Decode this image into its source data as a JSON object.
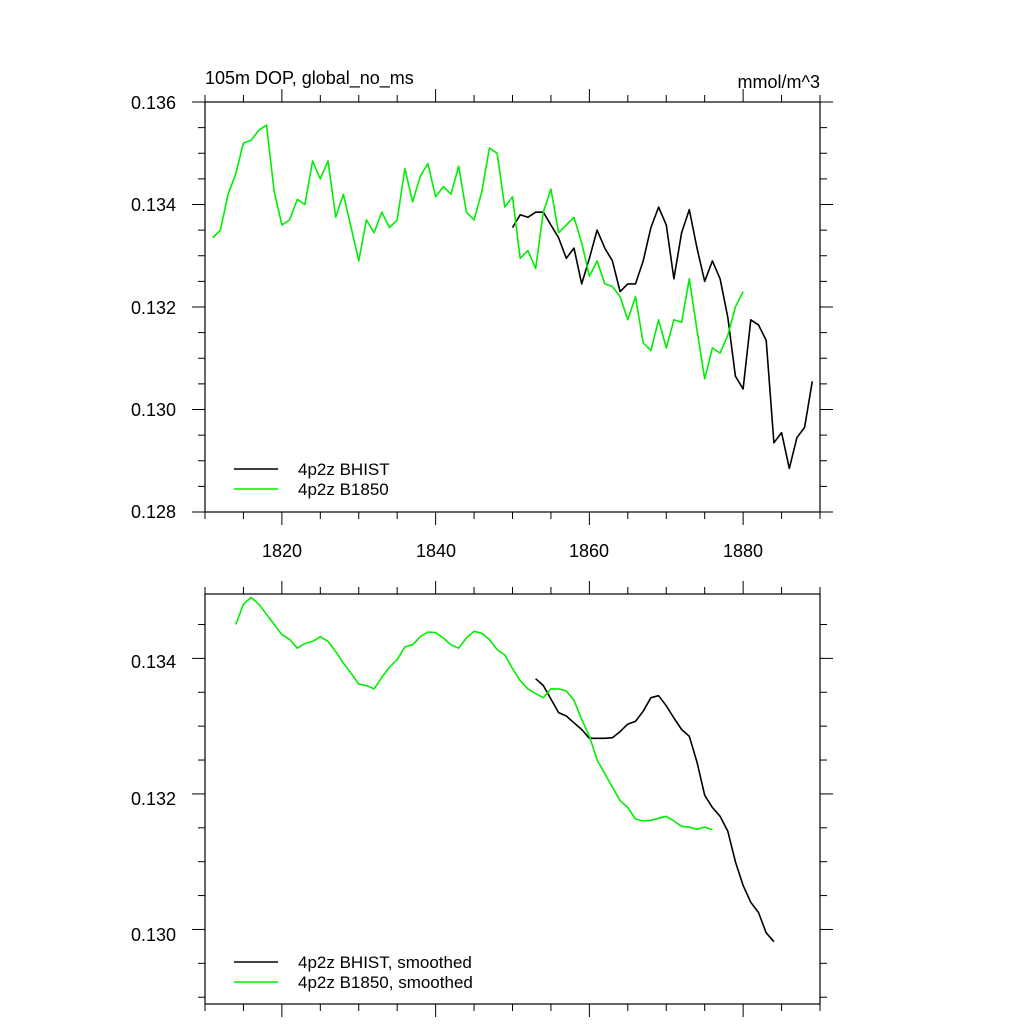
{
  "colors": {
    "bhist": "#000000",
    "b1850": "#00ee00"
  },
  "chart_data": [
    {
      "type": "line",
      "title": "105m DOP, global_no_ms",
      "units": "mmol/m^3",
      "xlim": [
        1810,
        1890
      ],
      "ylim": [
        0.128,
        0.136
      ],
      "x_ticks": [
        1820,
        1840,
        1860,
        1880
      ],
      "x_tick_labels": [
        "1820",
        "1840",
        "1860",
        "1880"
      ],
      "y_ticks": [
        0.128,
        0.13,
        0.132,
        0.134,
        0.136
      ],
      "y_tick_labels": [
        "0.128",
        "0.130",
        "0.132",
        "0.134",
        "0.136"
      ],
      "legend": {
        "position": "bottom-left",
        "entries": [
          "4p2z BHIST",
          "4p2z B1850"
        ]
      },
      "series": [
        {
          "name": "4p2z BHIST",
          "color": "#000000",
          "x_start": 1850,
          "values": [
            0.13355,
            0.1338,
            0.13375,
            0.13385,
            0.13385,
            0.1336,
            0.13335,
            0.13295,
            0.13315,
            0.13245,
            0.13295,
            0.1335,
            0.13315,
            0.1329,
            0.1323,
            0.13245,
            0.13245,
            0.1329,
            0.13355,
            0.13395,
            0.1336,
            0.13255,
            0.13345,
            0.1339,
            0.13315,
            0.1325,
            0.1329,
            0.13255,
            0.1318,
            0.13065,
            0.1304,
            0.13175,
            0.13165,
            0.13135,
            0.12935,
            0.12955,
            0.12885,
            0.12945,
            0.12965,
            0.13055
          ]
        },
        {
          "name": "4p2z B1850",
          "color": "#00ee00",
          "x_start": 1811,
          "values": [
            0.13335,
            0.1335,
            0.1342,
            0.1346,
            0.1352,
            0.13525,
            0.13545,
            0.13555,
            0.13425,
            0.1336,
            0.1337,
            0.1341,
            0.134,
            0.13485,
            0.1345,
            0.13485,
            0.13375,
            0.1342,
            0.13355,
            0.1329,
            0.1337,
            0.13345,
            0.13385,
            0.13355,
            0.1337,
            0.1347,
            0.13405,
            0.13455,
            0.1348,
            0.13415,
            0.13435,
            0.1342,
            0.13475,
            0.13385,
            0.1337,
            0.13425,
            0.1351,
            0.135,
            0.13395,
            0.13415,
            0.13295,
            0.1331,
            0.13275,
            0.13385,
            0.1343,
            0.13345,
            0.1336,
            0.13375,
            0.13325,
            0.1326,
            0.1329,
            0.13245,
            0.1324,
            0.1322,
            0.13175,
            0.1322,
            0.1313,
            0.13115,
            0.13175,
            0.1312,
            0.13175,
            0.1317,
            0.13255,
            0.13155,
            0.1306,
            0.1312,
            0.1311,
            0.13145,
            0.132,
            0.1323
          ]
        }
      ]
    },
    {
      "type": "line",
      "title": "",
      "xlim": [
        1810,
        1890
      ],
      "ylim": [
        0.1289,
        0.13495
      ],
      "x_ticks": [
        1820,
        1840,
        1860,
        1880
      ],
      "y_ticks": [
        0.13,
        0.132,
        0.134
      ],
      "y_tick_labels": [
        "0.130",
        "0.132",
        "0.134"
      ],
      "legend": {
        "position": "bottom-left",
        "entries": [
          "4p2z BHIST, smoothed",
          "4p2z B1850, smoothed"
        ]
      },
      "series": [
        {
          "name": "4p2z BHIST, smoothed",
          "color": "#000000",
          "x_start": 1853,
          "values": [
            0.1337,
            0.1336,
            0.1334,
            0.1332,
            0.13315,
            0.13305,
            0.13295,
            0.13282,
            0.13282,
            0.13282,
            0.13283,
            0.13292,
            0.13303,
            0.13307,
            0.13322,
            0.13342,
            0.13345,
            0.1333,
            0.13312,
            0.13295,
            0.13285,
            0.13247,
            0.13198,
            0.1318,
            0.13167,
            0.13145,
            0.131,
            0.13065,
            0.1304,
            0.13025,
            0.12995,
            0.12982
          ]
        },
        {
          "name": "4p2z B1850, smoothed",
          "color": "#00ee00",
          "x_start": 1814,
          "values": [
            0.1345,
            0.1348,
            0.1349,
            0.1348,
            0.13465,
            0.1345,
            0.13435,
            0.13428,
            0.13415,
            0.13422,
            0.13425,
            0.13432,
            0.13425,
            0.1341,
            0.13393,
            0.13378,
            0.13362,
            0.1336,
            0.13355,
            0.13372,
            0.13387,
            0.13398,
            0.13417,
            0.1342,
            0.13432,
            0.13439,
            0.13438,
            0.1343,
            0.1342,
            0.13415,
            0.1343,
            0.1344,
            0.13437,
            0.13428,
            0.13413,
            0.13405,
            0.13385,
            0.13367,
            0.13355,
            0.13348,
            0.13342,
            0.13355,
            0.13355,
            0.13352,
            0.13338,
            0.1331,
            0.13285,
            0.1325,
            0.1323,
            0.1321,
            0.1319,
            0.1318,
            0.13163,
            0.1316,
            0.13161,
            0.13164,
            0.13167,
            0.1316,
            0.13152,
            0.13151,
            0.13148,
            0.13151,
            0.13147
          ]
        }
      ]
    }
  ]
}
